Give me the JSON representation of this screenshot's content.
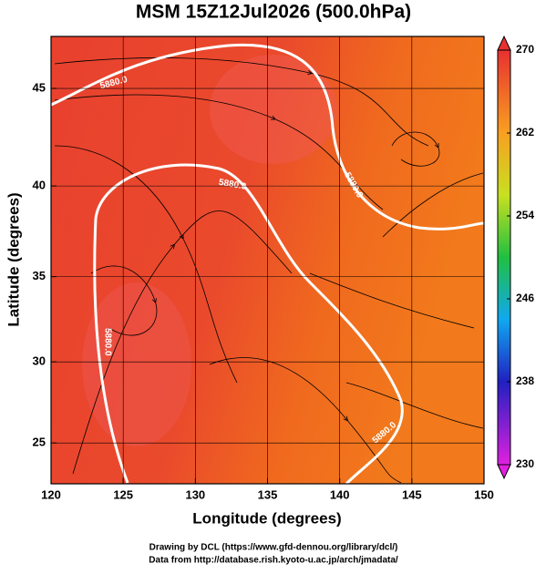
{
  "chart_data": {
    "type": "map",
    "title": "MSM 15Z12Jul2026 (500.0hPa)",
    "x_label": "Longitude (degrees)",
    "y_label": "Latitude  (degrees)",
    "xlim": [
      120,
      150
    ],
    "xticks": [
      120,
      125,
      130,
      135,
      140,
      145,
      150
    ],
    "ylim": [
      22.4,
      47.5
    ],
    "yticks": [
      25,
      30,
      35,
      40,
      45
    ],
    "y_scale": "mercator",
    "grid": true,
    "contour_label": "5880.0",
    "colorbar": {
      "lim": [
        230,
        270
      ],
      "ticks": [
        230,
        238,
        246,
        254,
        262,
        270
      ]
    },
    "credits": [
      "Drawing by DCL (https://www.gfd-dennou.org/library/dcl/)",
      "Data from http://database.rish.kyoto-u.ac.jp/arch/jmadata/"
    ]
  }
}
